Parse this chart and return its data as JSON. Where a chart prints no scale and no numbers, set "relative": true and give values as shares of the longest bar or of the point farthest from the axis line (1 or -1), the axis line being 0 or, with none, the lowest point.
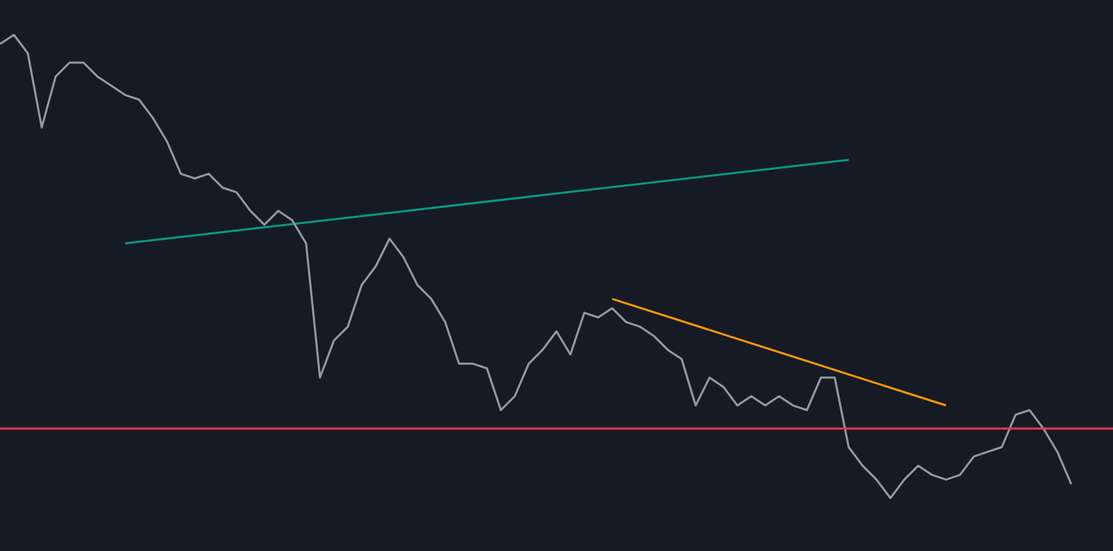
{
  "chart_data": {
    "type": "line",
    "relative": true,
    "grid": false,
    "legend": false,
    "marker": "none",
    "categories": [
      null,
      null,
      null,
      null,
      null,
      null,
      null,
      null,
      null,
      null,
      null,
      null,
      null,
      null,
      null,
      null,
      null,
      null,
      null,
      null,
      null,
      null,
      null,
      null,
      null,
      null,
      null,
      null,
      null,
      null,
      null,
      null,
      null,
      null,
      null,
      null,
      null,
      null,
      null,
      null,
      null,
      null,
      null,
      null,
      null,
      null,
      null,
      null,
      null,
      null,
      null,
      null,
      null,
      null,
      null,
      null,
      null,
      null,
      null,
      null,
      null,
      null,
      null,
      null,
      null,
      null,
      null,
      null,
      null,
      null,
      null,
      null,
      null,
      null,
      null,
      null,
      null,
      null
    ],
    "series": [
      {
        "color": "#9598a1",
        "values": [
          0.98,
          1.0,
          0.96,
          0.8,
          0.91,
          0.94,
          0.94,
          0.91,
          0.89,
          0.87,
          0.86,
          0.82,
          0.77,
          0.7,
          0.69,
          0.7,
          0.67,
          0.66,
          0.62,
          0.59,
          0.62,
          0.6,
          0.55,
          0.26,
          0.34,
          0.37,
          0.46,
          0.5,
          0.56,
          0.52,
          0.46,
          0.43,
          0.38,
          0.29,
          0.29,
          0.28,
          0.19,
          0.22,
          0.29,
          0.32,
          0.36,
          0.31,
          0.4,
          0.39,
          0.41,
          0.38,
          0.37,
          0.35,
          0.32,
          0.3,
          0.2,
          0.26,
          0.24,
          0.2,
          0.22,
          0.2,
          0.22,
          0.2,
          0.19,
          0.26,
          0.26,
          0.11,
          0.07,
          0.04,
          0.0,
          0.04,
          0.07,
          0.05,
          0.04,
          0.05,
          0.09,
          0.1,
          0.11,
          0.18,
          0.19,
          0.15,
          0.1,
          0.03
        ]
      },
      {
        "type": "line",
        "color": "#089981",
        "values": [
          null,
          null,
          null,
          null,
          null,
          null,
          null,
          null,
          null,
          0.55,
          null,
          null,
          null,
          null,
          null,
          null,
          null,
          null,
          null,
          null,
          null,
          null,
          null,
          null,
          null,
          null,
          null,
          null,
          null,
          null,
          null,
          null,
          null,
          null,
          null,
          null,
          null,
          null,
          null,
          null,
          null,
          null,
          null,
          null,
          null,
          null,
          null,
          null,
          null,
          null,
          null,
          null,
          null,
          null,
          null,
          null,
          null,
          null,
          null,
          null,
          null,
          0.73,
          null,
          null,
          null,
          null,
          null,
          null,
          null,
          null,
          null,
          null,
          null,
          null,
          null,
          null,
          null,
          null
        ]
      },
      {
        "type": "line",
        "color": "#ff9800",
        "values": [
          null,
          null,
          null,
          null,
          null,
          null,
          null,
          null,
          null,
          null,
          null,
          null,
          null,
          null,
          null,
          null,
          null,
          null,
          null,
          null,
          null,
          null,
          null,
          null,
          null,
          null,
          null,
          null,
          null,
          null,
          null,
          null,
          null,
          null,
          null,
          null,
          null,
          null,
          null,
          null,
          null,
          null,
          null,
          null,
          0.43,
          null,
          null,
          null,
          null,
          null,
          null,
          null,
          null,
          null,
          null,
          null,
          null,
          null,
          null,
          null,
          null,
          null,
          null,
          null,
          null,
          null,
          null,
          null,
          0.2,
          null,
          null,
          null,
          null,
          null,
          null,
          null,
          null,
          null
        ]
      }
    ],
    "ref_lines": [
      {
        "axis": "y",
        "value": 0.15,
        "color": "#f23645"
      }
    ]
  }
}
